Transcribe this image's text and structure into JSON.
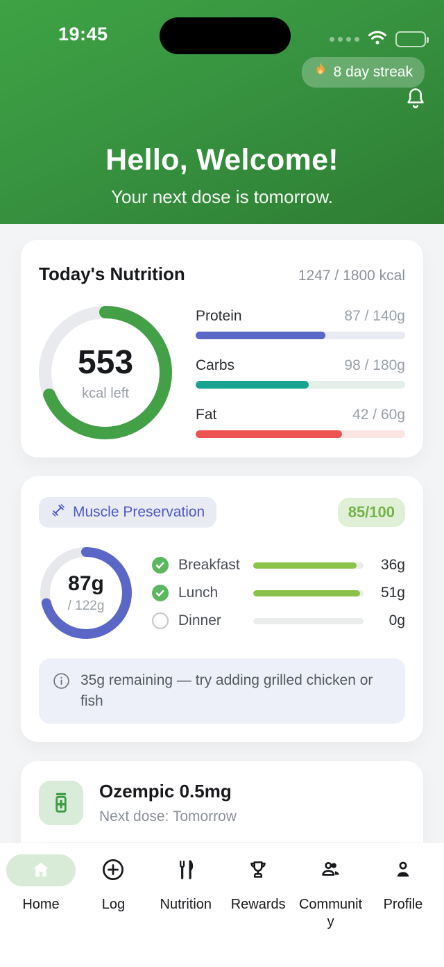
{
  "status_bar": {
    "time": "19:45"
  },
  "header": {
    "streak_label": "8 day streak",
    "title": "Hello, Welcome!",
    "subtitle": "Your next dose is tomorrow."
  },
  "nutrition_card": {
    "title": "Today's Nutrition",
    "calories_summary": "1247 / 1800 kcal",
    "ring": {
      "value": "553",
      "label": "kcal left",
      "percent": 69,
      "color": "#43a047",
      "track": "#e9eaed"
    },
    "macros": [
      {
        "name": "Protein",
        "value": "87 / 140g",
        "percent": 62,
        "color": "#5b67c7",
        "track": "#e9ebf2"
      },
      {
        "name": "Carbs",
        "value": "98 / 180g",
        "percent": 54,
        "color": "#18a28f",
        "track": "#e4efe9"
      },
      {
        "name": "Fat",
        "value": "42 / 60g",
        "percent": 70,
        "color": "#ee5352",
        "track": "#fbe5e2"
      }
    ]
  },
  "muscle_card": {
    "badge_label": "Muscle Preservation",
    "score": "85/100",
    "ring": {
      "value": "87g",
      "label": "/ 122g",
      "percent": 71,
      "color": "#5b67c7",
      "track": "#e7e8ec"
    },
    "meals": [
      {
        "name": "Breakfast",
        "amount": "36g",
        "done": true,
        "percent": 94,
        "color": "#8bc34a",
        "track": "#ebecec"
      },
      {
        "name": "Lunch",
        "amount": "51g",
        "done": true,
        "percent": 97,
        "color": "#8bc34a",
        "track": "#ebecec"
      },
      {
        "name": "Dinner",
        "amount": "0g",
        "done": false,
        "percent": 0,
        "color": "#8bc34a",
        "track": "#ebecec"
      }
    ],
    "tip": "35g remaining — try adding grilled chicken or fish"
  },
  "medication_card": {
    "title": "Ozempic 0.5mg",
    "subtitle": "Next dose: Tomorrow"
  },
  "nav": {
    "items": [
      {
        "label": "Home"
      },
      {
        "label": "Log"
      },
      {
        "label": "Nutrition"
      },
      {
        "label": "Rewards"
      },
      {
        "label": "Community"
      },
      {
        "label": "Profile"
      }
    ]
  },
  "colors": {
    "header_green_top": "#3ea344",
    "header_green_bottom": "#2e7d32",
    "check_green": "#5cb860",
    "flame_orange": "#f2a33c",
    "nav_active_bg": "#d7ebd7"
  }
}
